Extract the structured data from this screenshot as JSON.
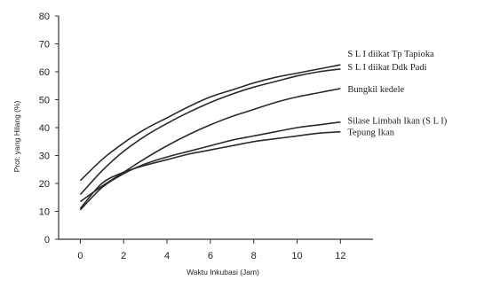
{
  "chart_data": {
    "type": "line",
    "title": "",
    "xlabel": "Waktu Inkubasi (Jam)",
    "ylabel": "Prot. yang Hilang (%)",
    "xlim": [
      -1,
      13.5
    ],
    "ylim": [
      0,
      80
    ],
    "xticks": [
      0,
      2,
      4,
      6,
      8,
      10,
      12
    ],
    "yticks": [
      0,
      10,
      20,
      30,
      40,
      50,
      60,
      70,
      80
    ],
    "grid": false,
    "legend": "inline labels at right end of each curve",
    "x": [
      0,
      1,
      2,
      3,
      4,
      5,
      6,
      7,
      8,
      9,
      10,
      11,
      12
    ],
    "series": [
      {
        "name": "S L I diikat Tp Tapioka",
        "values": [
          21,
          28.5,
          34.5,
          39.5,
          43.5,
          47.5,
          51,
          53.5,
          56,
          58,
          59.5,
          61,
          62.5
        ]
      },
      {
        "name": "S L I diikat Ddk Padi",
        "values": [
          16,
          24.5,
          31.5,
          37,
          41.5,
          45.5,
          49,
          52,
          54.5,
          56.5,
          58.5,
          60,
          61
        ]
      },
      {
        "name": "Bungkil kedele",
        "values": [
          13.5,
          19,
          24,
          29,
          33.5,
          37.5,
          41,
          44,
          46.5,
          49,
          51,
          52.5,
          54
        ]
      },
      {
        "name": "Silase Limbah Ikan (S L I)",
        "values": [
          10.5,
          18.5,
          23.5,
          27,
          29.5,
          31.5,
          33.5,
          35.5,
          37,
          38.5,
          40,
          41,
          42
        ]
      },
      {
        "name": "Tepung Ikan",
        "values": [
          11,
          20,
          24,
          26.5,
          28.5,
          30.5,
          32,
          33.5,
          35,
          36,
          37,
          38,
          38.5
        ]
      }
    ]
  }
}
